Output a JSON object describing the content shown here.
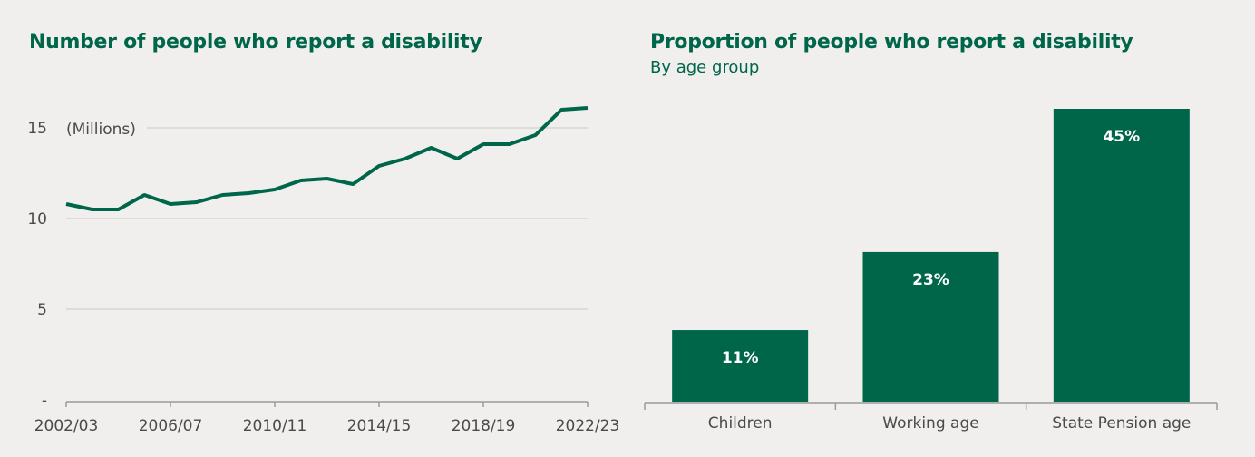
{
  "colors": {
    "background": "#f0efee",
    "accent": "#00664a",
    "text": "#4a4a4a",
    "gridline": "#dddcdb",
    "axis": "#9a9a9a",
    "bar_label": "#ffffff"
  },
  "chart_data": [
    {
      "type": "line",
      "title": "Number of people who report a disability",
      "subtitle": "",
      "xlabel": "",
      "ylabel": "(Millions)",
      "ylim": [
        0,
        17
      ],
      "grid": true,
      "yticks": [
        0,
        5,
        10,
        15
      ],
      "ytick_labels": [
        "-",
        "5",
        "10",
        "15"
      ],
      "xtick_labels": [
        "2002/03",
        "2006/07",
        "2010/11",
        "2014/15",
        "2018/19",
        "2022/23"
      ],
      "x": [
        "2002/03",
        "2003/04",
        "2004/05",
        "2005/06",
        "2006/07",
        "2007/08",
        "2008/09",
        "2009/10",
        "2010/11",
        "2011/12",
        "2012/13",
        "2013/14",
        "2014/15",
        "2015/16",
        "2016/17",
        "2017/18",
        "2018/19",
        "2019/20",
        "2020/21",
        "2021/22",
        "2022/23"
      ],
      "series": [
        {
          "name": "People who report a disability (millions)",
          "values": [
            10.8,
            10.5,
            10.5,
            11.3,
            10.8,
            10.9,
            11.3,
            11.4,
            11.6,
            12.1,
            12.2,
            11.9,
            12.9,
            13.3,
            13.9,
            13.3,
            14.1,
            14.1,
            14.6,
            16.0,
            16.1
          ]
        }
      ]
    },
    {
      "type": "bar",
      "title": "Proportion of people who report a disability",
      "subtitle": "By age group",
      "xlabel": "",
      "ylabel": "",
      "ylim": [
        0,
        45
      ],
      "grid": false,
      "categories": [
        "Children",
        "Working age",
        "State Pension age"
      ],
      "values": [
        11,
        23,
        45
      ],
      "value_labels": [
        "11%",
        "23%",
        "45%"
      ]
    }
  ]
}
